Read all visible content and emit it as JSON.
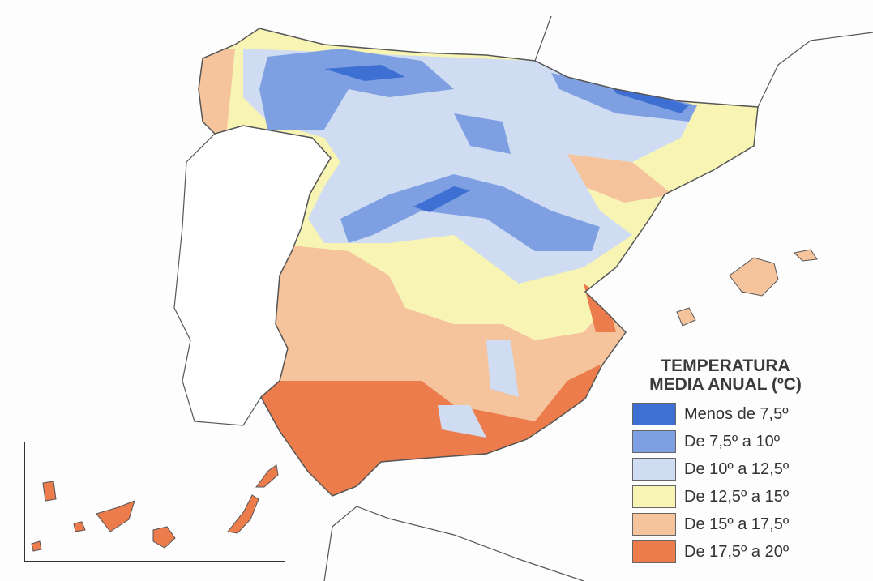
{
  "legend": {
    "title_line1": "TEMPERATURA",
    "title_line2": "MEDIA ANUAL (ºC)",
    "items": [
      {
        "label": "Menos de 7,5º",
        "color": "#3e6fd2"
      },
      {
        "label": "De 7,5º a 10º",
        "color": "#7ea0e2"
      },
      {
        "label": "De 10º a 12,5º",
        "color": "#cfdcf2"
      },
      {
        "label": "De 12,5º a 15º",
        "color": "#f8f4b4"
      },
      {
        "label": "De 15º a 17,5º",
        "color": "#f5c39c"
      },
      {
        "label": "De 17,5º a 20º",
        "color": "#ec7c4c"
      }
    ]
  }
}
